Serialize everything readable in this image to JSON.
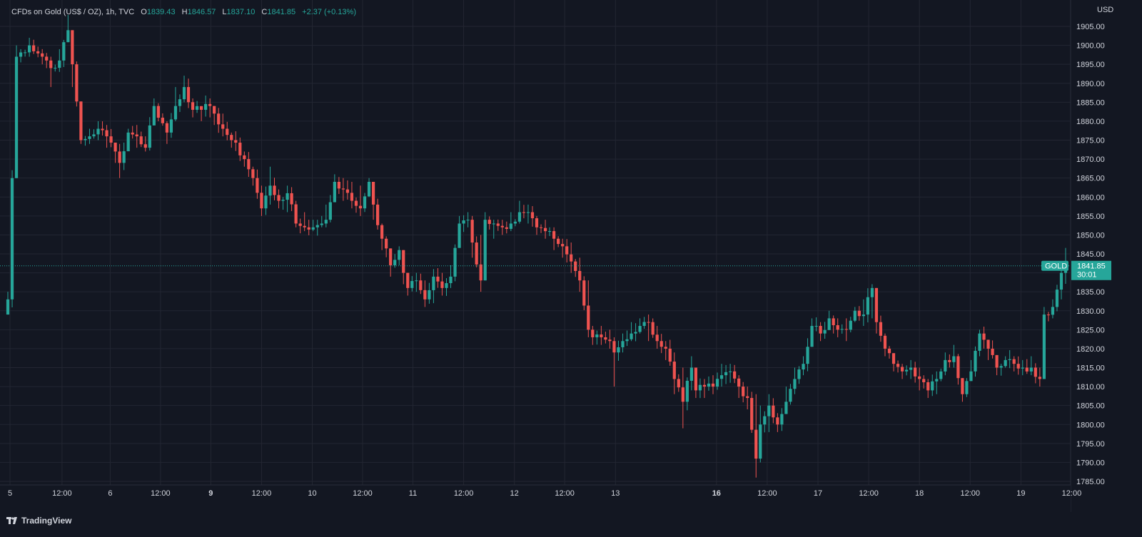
{
  "legend": {
    "symbol": "CFDs on Gold (US$ / OZ), 1h, TVC",
    "o_label": "O",
    "o_value": "1839.43",
    "h_label": "H",
    "h_value": "1846.57",
    "l_label": "L",
    "l_value": "1837.10",
    "c_label": "C",
    "c_value": "1841.85",
    "change": "+2.37 (+0.13%)"
  },
  "brand": {
    "name": "TradingView"
  },
  "colors": {
    "background": "#131722",
    "grid": "#232632",
    "up": "#26a69a",
    "down": "#ef5350",
    "axis_text": "#d1d4dc",
    "price_line": "#26a69a"
  },
  "chart_data": {
    "type": "candlestick",
    "timeframe": "1h",
    "currency_label": "USD",
    "y_range": [
      1784,
      1909
    ],
    "y_ticks": [
      "1905.00",
      "1900.00",
      "1895.00",
      "1890.00",
      "1885.00",
      "1880.00",
      "1875.00",
      "1870.00",
      "1865.00",
      "1860.00",
      "1855.00",
      "1850.00",
      "1845.00",
      "1840.00",
      "1835.00",
      "1830.00",
      "1825.00",
      "1820.00",
      "1815.00",
      "1810.00",
      "1805.00",
      "1800.00",
      "1795.00",
      "1790.00",
      "1785.00"
    ],
    "x_ticks": [
      {
        "label": "5",
        "index": 0.5,
        "bold": false
      },
      {
        "label": "12:00",
        "index": 12.6,
        "bold": false
      },
      {
        "label": "6",
        "index": 23.8,
        "bold": false
      },
      {
        "label": "12:00",
        "index": 35.5,
        "bold": false
      },
      {
        "label": "9",
        "index": 47.2,
        "bold": true
      },
      {
        "label": "12:00",
        "index": 59.0,
        "bold": false
      },
      {
        "label": "10",
        "index": 70.8,
        "bold": false
      },
      {
        "label": "12:00",
        "index": 82.5,
        "bold": false
      },
      {
        "label": "11",
        "index": 94.2,
        "bold": false
      },
      {
        "label": "12:00",
        "index": 106.0,
        "bold": false
      },
      {
        "label": "12",
        "index": 117.8,
        "bold": false
      },
      {
        "label": "12:00",
        "index": 129.5,
        "bold": false
      },
      {
        "label": "13",
        "index": 141.3,
        "bold": false
      },
      {
        "label": "16",
        "index": 164.8,
        "bold": true
      },
      {
        "label": "12:00",
        "index": 176.6,
        "bold": false
      },
      {
        "label": "17",
        "index": 188.4,
        "bold": false
      },
      {
        "label": "12:00",
        "index": 200.2,
        "bold": false
      },
      {
        "label": "18",
        "index": 212.0,
        "bold": false
      },
      {
        "label": "12:00",
        "index": 223.8,
        "bold": false
      },
      {
        "label": "19",
        "index": 235.6,
        "bold": false
      },
      {
        "label": "12:00",
        "index": 247.4,
        "bold": false
      }
    ],
    "last_price": {
      "label": "GOLD",
      "value": "1841.85",
      "price": 1841.85,
      "countdown": "30:01"
    },
    "anchors": [
      [
        0,
        1833,
        1833,
        1835
      ],
      [
        2,
        1897,
        1890,
        1900
      ],
      [
        5,
        1900,
        1897,
        1902
      ],
      [
        9,
        1896,
        1894,
        1898
      ],
      [
        10,
        1894,
        1889,
        1897
      ],
      [
        12,
        1896,
        1893,
        1899
      ],
      [
        14,
        1904,
        1901,
        1908
      ],
      [
        15,
        1895,
        1889,
        1897
      ],
      [
        17,
        1875,
        1874,
        1885
      ],
      [
        19,
        1876,
        1874,
        1878
      ],
      [
        21,
        1878,
        1875,
        1880
      ],
      [
        23,
        1876,
        1873,
        1879
      ],
      [
        25,
        1872,
        1869,
        1874
      ],
      [
        26,
        1869,
        1865,
        1874
      ],
      [
        28,
        1877,
        1874,
        1878
      ],
      [
        30,
        1876,
        1873,
        1879
      ],
      [
        32,
        1873,
        1872,
        1876
      ],
      [
        34,
        1884,
        1882,
        1886
      ],
      [
        37,
        1877,
        1874,
        1880
      ],
      [
        39,
        1884,
        1880,
        1889
      ],
      [
        41,
        1889,
        1885,
        1892
      ],
      [
        43,
        1883,
        1881,
        1886
      ],
      [
        45,
        1883,
        1880,
        1884
      ],
      [
        47,
        1884,
        1881,
        1886
      ],
      [
        48,
        1882,
        1879,
        1884
      ],
      [
        50,
        1878,
        1876,
        1882
      ],
      [
        52,
        1875,
        1873,
        1877
      ],
      [
        55,
        1870,
        1868,
        1872
      ],
      [
        57,
        1865,
        1863,
        1868
      ],
      [
        59,
        1857,
        1855,
        1863
      ],
      [
        61,
        1863,
        1858,
        1868
      ],
      [
        63,
        1859,
        1857,
        1862
      ],
      [
        65,
        1861,
        1856,
        1863
      ],
      [
        67,
        1853,
        1852,
        1859
      ],
      [
        69,
        1852,
        1851,
        1856
      ],
      [
        71,
        1852,
        1851,
        1854
      ],
      [
        73,
        1853,
        1852,
        1855
      ],
      [
        74,
        1854,
        1852,
        1858
      ],
      [
        76,
        1864,
        1862,
        1866
      ],
      [
        78,
        1862,
        1859,
        1865
      ],
      [
        80,
        1859,
        1857,
        1864
      ],
      [
        82,
        1857,
        1855,
        1863
      ],
      [
        84,
        1864,
        1860,
        1865
      ],
      [
        85,
        1858,
        1854,
        1862
      ],
      [
        87,
        1849,
        1846,
        1853
      ],
      [
        89,
        1842,
        1839,
        1846
      ],
      [
        91,
        1846,
        1842,
        1847
      ],
      [
        92,
        1840,
        1837,
        1842
      ],
      [
        93,
        1836,
        1834,
        1840
      ],
      [
        95,
        1838,
        1835,
        1840
      ],
      [
        97,
        1833,
        1831,
        1838
      ],
      [
        99,
        1839,
        1832,
        1841
      ],
      [
        101,
        1836,
        1834,
        1840
      ],
      [
        103,
        1839,
        1836,
        1842
      ],
      [
        105,
        1853,
        1848,
        1855
      ],
      [
        107,
        1854,
        1852,
        1856
      ],
      [
        108,
        1848,
        1844,
        1855
      ],
      [
        110,
        1838,
        1835,
        1850
      ],
      [
        111,
        1854,
        1850,
        1856
      ],
      [
        113,
        1853,
        1849,
        1854
      ],
      [
        115,
        1852,
        1850,
        1854
      ],
      [
        117,
        1853,
        1851,
        1856
      ],
      [
        119,
        1856,
        1853,
        1859
      ],
      [
        121,
        1856,
        1853,
        1858
      ],
      [
        123,
        1852,
        1850,
        1855
      ],
      [
        125,
        1851,
        1849,
        1854
      ],
      [
        127,
        1849,
        1846,
        1852
      ],
      [
        129,
        1847,
        1844,
        1849
      ],
      [
        131,
        1843,
        1840,
        1848
      ],
      [
        133,
        1838,
        1835,
        1844
      ],
      [
        135,
        1825,
        1823,
        1838
      ],
      [
        136,
        1823,
        1821,
        1826
      ],
      [
        138,
        1823,
        1821,
        1826
      ],
      [
        140,
        1822,
        1820,
        1825
      ],
      [
        141,
        1819,
        1810,
        1823
      ],
      [
        143,
        1822,
        1819,
        1824
      ],
      [
        145,
        1824,
        1822,
        1827
      ],
      [
        147,
        1826,
        1824,
        1828
      ],
      [
        149,
        1827,
        1822,
        1829
      ],
      [
        151,
        1822,
        1820,
        1826
      ],
      [
        153,
        1820,
        1817,
        1822
      ],
      [
        155,
        1812,
        1808,
        1819
      ],
      [
        157,
        1806,
        1799,
        1815
      ],
      [
        159,
        1815,
        1809,
        1818
      ],
      [
        160,
        1809,
        1807,
        1812
      ],
      [
        162,
        1810,
        1807,
        1812
      ],
      [
        164,
        1810,
        1808,
        1813
      ],
      [
        166,
        1813,
        1810,
        1816
      ],
      [
        168,
        1814,
        1811,
        1816
      ],
      [
        170,
        1810,
        1807,
        1813
      ],
      [
        172,
        1807,
        1804,
        1810
      ],
      [
        174,
        1791,
        1786,
        1808
      ],
      [
        175,
        1800,
        1790,
        1805
      ],
      [
        177,
        1805,
        1798,
        1808
      ],
      [
        179,
        1800,
        1798,
        1803
      ],
      [
        181,
        1806,
        1803,
        1810
      ],
      [
        183,
        1812,
        1808,
        1815
      ],
      [
        185,
        1816,
        1813,
        1818
      ],
      [
        187,
        1826,
        1822,
        1828
      ],
      [
        189,
        1824,
        1822,
        1827
      ],
      [
        191,
        1828,
        1825,
        1830
      ],
      [
        193,
        1825,
        1823,
        1828
      ],
      [
        195,
        1825,
        1822,
        1828
      ],
      [
        197,
        1830,
        1827,
        1831
      ],
      [
        199,
        1829,
        1826,
        1833
      ],
      [
        201,
        1836,
        1828,
        1837
      ],
      [
        202,
        1827,
        1824,
        1831
      ],
      [
        204,
        1820,
        1818,
        1824
      ],
      [
        206,
        1816,
        1814,
        1818
      ],
      [
        208,
        1814,
        1812,
        1816
      ],
      [
        210,
        1815,
        1812,
        1817
      ],
      [
        212,
        1812,
        1809,
        1815
      ],
      [
        214,
        1809,
        1807,
        1812
      ],
      [
        216,
        1812,
        1808,
        1814
      ],
      [
        218,
        1817,
        1813,
        1819
      ],
      [
        220,
        1818,
        1815,
        1821
      ],
      [
        222,
        1808,
        1806,
        1812
      ],
      [
        224,
        1814,
        1812,
        1817
      ],
      [
        226,
        1824,
        1818,
        1825
      ],
      [
        228,
        1820,
        1817,
        1822
      ],
      [
        230,
        1815,
        1813,
        1818
      ],
      [
        232,
        1817,
        1815,
        1818
      ],
      [
        234,
        1816,
        1814,
        1818
      ],
      [
        236,
        1815,
        1813,
        1817
      ],
      [
        238,
        1815,
        1813,
        1818
      ],
      [
        240,
        1812,
        1810,
        1815
      ],
      [
        241,
        1829,
        1819,
        1831
      ],
      [
        243,
        1831,
        1828,
        1833
      ],
      [
        245,
        1840,
        1833,
        1843
      ],
      [
        246,
        1841.85,
        1837.1,
        1846.57
      ]
    ]
  }
}
